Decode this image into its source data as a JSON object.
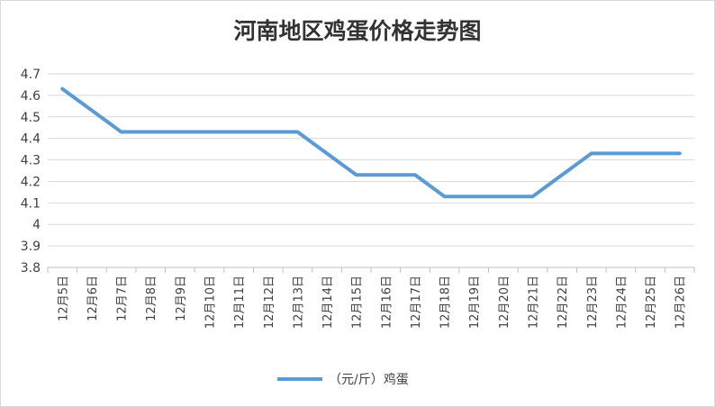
{
  "chart_data": {
    "type": "line",
    "title": "河南地区鸡蛋价格走势图",
    "xlabel": "",
    "ylabel": "",
    "categories": [
      "12月5日",
      "12月6日",
      "12月7日",
      "12月8日",
      "12月9日",
      "12月10日",
      "12月11日",
      "12月12日",
      "12月13日",
      "12月14日",
      "12月15日",
      "12月16日",
      "12月17日",
      "12月18日",
      "12月19日",
      "12月20日",
      "12月21日",
      "12月22日",
      "12月23日",
      "12月24日",
      "12月25日",
      "12月26日"
    ],
    "series": [
      {
        "name": "（元/斤）鸡蛋",
        "values": [
          4.63,
          4.53,
          4.43,
          4.43,
          4.43,
          4.43,
          4.43,
          4.43,
          4.43,
          4.33,
          4.23,
          4.23,
          4.23,
          4.13,
          4.13,
          4.13,
          4.13,
          4.23,
          4.33,
          4.33,
          4.33,
          4.33
        ],
        "color": "#5b9bd5"
      }
    ],
    "ylim": [
      3.8,
      4.7
    ],
    "yticks": [
      "4.7",
      "4.6",
      "4.5",
      "4.4",
      "4.3",
      "4.2",
      "4.1",
      "4",
      "3.9",
      "3.8"
    ],
    "grid": true,
    "legend_position": "bottom"
  }
}
